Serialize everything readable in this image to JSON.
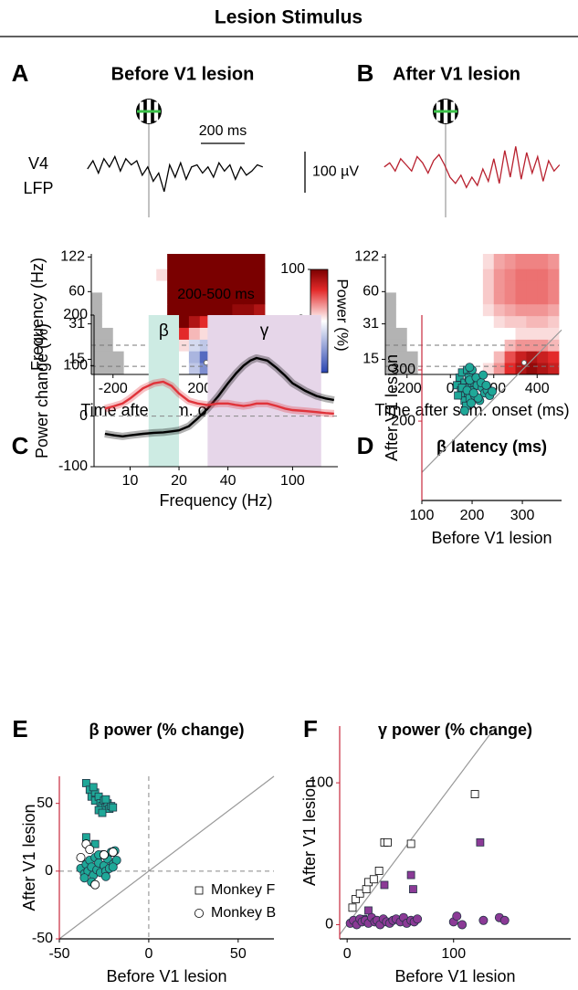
{
  "title": "Lesion Stimulus",
  "chart_data": [
    {
      "type": "trace",
      "panel": "A",
      "title": "Before V1 lesion",
      "title_color": "#000000",
      "color": "#000000",
      "ylabel_lines": [
        "V4",
        "LFP"
      ],
      "scalebar_x": {
        "value": 200,
        "label": "200 ms"
      },
      "x": [
        -280,
        -255,
        -230,
        -205,
        -180,
        -155,
        -130,
        -105,
        -80,
        -55,
        -30,
        -5,
        20,
        45,
        70,
        95,
        120,
        145,
        170,
        195,
        220,
        245,
        270,
        295,
        320,
        345,
        370,
        395,
        420,
        445,
        470,
        495,
        520
      ],
      "values": [
        0,
        20,
        -10,
        25,
        5,
        30,
        -5,
        25,
        10,
        20,
        -15,
        5,
        -30,
        -10,
        -55,
        10,
        -20,
        15,
        -25,
        5,
        10,
        -10,
        5,
        -20,
        15,
        -5,
        10,
        -25,
        5,
        -15,
        -5,
        10,
        5
      ]
    },
    {
      "type": "trace",
      "panel": "B",
      "title": "After V1 lesion",
      "title_color": "#c8283c",
      "color": "#b8202e",
      "scalebar_y": {
        "value": 100,
        "label": "100 µV"
      },
      "x": [
        -280,
        -255,
        -230,
        -205,
        -180,
        -155,
        -130,
        -105,
        -80,
        -55,
        -30,
        -5,
        20,
        45,
        70,
        95,
        120,
        145,
        170,
        195,
        220,
        245,
        270,
        295,
        320,
        345,
        370,
        395,
        420,
        445,
        470,
        495,
        520
      ],
      "values": [
        5,
        15,
        -5,
        25,
        10,
        -5,
        30,
        15,
        -10,
        20,
        35,
        10,
        -20,
        -35,
        -15,
        -45,
        -20,
        -40,
        0,
        -30,
        25,
        -35,
        45,
        -20,
        55,
        -25,
        40,
        -10,
        30,
        -30,
        20,
        -5,
        10
      ]
    },
    {
      "type": "heatmap",
      "xlabel": "Time after stim. onset (ms)",
      "ylabel": "Frequency (Hz)",
      "xlim": [
        -300,
        500
      ],
      "xticks": [
        -200,
        0,
        200,
        400
      ],
      "ylim": [
        11,
        130
      ],
      "yticks": [
        15,
        31,
        60,
        122
      ],
      "log_y": true,
      "xbins": [
        -300,
        -250,
        -200,
        -150,
        -100,
        -50,
        0,
        50,
        100,
        150,
        200,
        250,
        300,
        350,
        400,
        450,
        500
      ],
      "ybins": [
        11,
        14,
        17.8,
        22.6,
        28.8,
        36.6,
        46.6,
        59.3,
        75.4,
        95.9,
        130
      ],
      "z": [
        [
          null,
          null,
          null,
          0,
          0,
          0,
          0,
          0,
          0,
          -30,
          -60,
          -70,
          -70,
          -60,
          -60,
          -50
        ],
        [
          null,
          null,
          null,
          0,
          0,
          0,
          0,
          0,
          0,
          -40,
          -80,
          -90,
          -80,
          -70,
          -70,
          -60
        ],
        [
          null,
          null,
          0,
          0,
          0,
          0,
          0,
          0,
          10,
          -20,
          -30,
          -30,
          -20,
          -20,
          -10,
          -10
        ],
        [
          null,
          null,
          0,
          0,
          0,
          0,
          0,
          100,
          60,
          20,
          10,
          10,
          20,
          20,
          20,
          20
        ],
        [
          null,
          0,
          0,
          0,
          0,
          0,
          0,
          120,
          110,
          80,
          60,
          50,
          60,
          60,
          50,
          40
        ],
        [
          null,
          0,
          0,
          0,
          0,
          0,
          0,
          130,
          130,
          120,
          110,
          100,
          100,
          90,
          90,
          80
        ],
        [
          null,
          0,
          0,
          0,
          0,
          0,
          0,
          140,
          130,
          130,
          130,
          130,
          130,
          120,
          120,
          110
        ],
        [
          0,
          0,
          0,
          0,
          0,
          0,
          0,
          140,
          130,
          130,
          130,
          130,
          130,
          130,
          120,
          120
        ],
        [
          0,
          0,
          0,
          0,
          0,
          0,
          10,
          140,
          130,
          130,
          130,
          130,
          130,
          130,
          130,
          120
        ],
        [
          0,
          0,
          0,
          0,
          0,
          0,
          0,
          140,
          130,
          130,
          130,
          130,
          130,
          130,
          130,
          130
        ]
      ],
      "hlines": [
        13,
        20
      ],
      "marker": {
        "x": 230,
        "y": 14
      },
      "colorbar": {
        "clim": [
          -100,
          100
        ],
        "ticks": [
          -100,
          0,
          100
        ],
        "label": "Power (%)"
      }
    },
    {
      "type": "heatmap",
      "xlabel": "Time after stim. onset (ms)",
      "xlim": [
        -300,
        500
      ],
      "xticks": [
        -200,
        0,
        200,
        400
      ],
      "ylim": [
        11,
        130
      ],
      "yticks": [
        15,
        31,
        60,
        122
      ],
      "log_y": true,
      "xbins": [
        -300,
        -250,
        -200,
        -150,
        -100,
        -50,
        0,
        50,
        100,
        150,
        200,
        250,
        300,
        350,
        400,
        450,
        500
      ],
      "ybins": [
        11,
        14,
        17.8,
        22.6,
        28.8,
        36.6,
        46.6,
        59.3,
        75.4,
        95.9,
        130
      ],
      "z": [
        [
          null,
          null,
          null,
          0,
          0,
          0,
          0,
          0,
          0,
          10,
          30,
          60,
          80,
          90,
          80,
          70
        ],
        [
          null,
          null,
          null,
          0,
          0,
          0,
          0,
          0,
          0,
          0,
          20,
          50,
          70,
          80,
          70,
          60
        ],
        [
          null,
          null,
          0,
          0,
          0,
          0,
          0,
          0,
          0,
          0,
          0,
          20,
          30,
          30,
          30,
          20
        ],
        [
          null,
          null,
          0,
          0,
          0,
          0,
          0,
          0,
          0,
          0,
          0,
          0,
          10,
          10,
          10,
          10
        ],
        [
          null,
          0,
          0,
          0,
          0,
          0,
          0,
          0,
          0,
          0,
          10,
          15,
          15,
          20,
          20,
          15
        ],
        [
          null,
          0,
          0,
          0,
          0,
          0,
          0,
          0,
          0,
          10,
          20,
          25,
          30,
          30,
          30,
          25
        ],
        [
          null,
          0,
          0,
          0,
          0,
          0,
          0,
          0,
          0,
          15,
          30,
          35,
          40,
          40,
          40,
          35
        ],
        [
          0,
          0,
          0,
          0,
          0,
          0,
          0,
          0,
          0,
          15,
          30,
          35,
          40,
          40,
          40,
          35
        ],
        [
          0,
          0,
          0,
          0,
          0,
          0,
          0,
          0,
          0,
          15,
          30,
          35,
          40,
          40,
          40,
          35
        ],
        [
          0,
          0,
          0,
          0,
          0,
          0,
          0,
          0,
          0,
          10,
          25,
          30,
          35,
          35,
          35,
          30
        ]
      ],
      "hlines": [
        13,
        20
      ],
      "marker": {
        "x": 340,
        "y": 14
      }
    },
    {
      "type": "line",
      "panel": "C",
      "title": "200-500 ms",
      "title_color": "#000000",
      "xlabel": "Frequency (Hz)",
      "ylabel": "Power change (%)",
      "xlim": [
        6,
        190
      ],
      "xticks": [
        10,
        20,
        40,
        100
      ],
      "log_x": true,
      "ylim": [
        -100,
        200
      ],
      "yticks": [
        -100,
        0,
        100,
        200
      ],
      "bands": [
        {
          "label": "β",
          "range": [
            13,
            20
          ],
          "color": "#cdebe3",
          "label_color": "#1fa898"
        },
        {
          "label": "γ",
          "range": [
            30,
            150
          ],
          "color": "#e6d6e9",
          "label_color": "#8b3a96"
        }
      ],
      "hlines": [
        0
      ],
      "x": [
        7,
        8,
        9,
        10,
        12,
        14,
        16,
        18,
        20,
        23,
        26,
        30,
        35,
        40,
        45,
        50,
        55,
        60,
        70,
        80,
        90,
        100,
        120,
        140,
        160,
        180
      ],
      "series": [
        {
          "color": "#000000",
          "values": [
            -35,
            -38,
            -40,
            -38,
            -35,
            -33,
            -32,
            -30,
            -28,
            -20,
            -5,
            15,
            40,
            65,
            85,
            100,
            110,
            115,
            110,
            95,
            80,
            65,
            50,
            40,
            35,
            32
          ]
        },
        {
          "color": "#e0333a",
          "values": [
            15,
            20,
            25,
            35,
            55,
            65,
            68,
            60,
            45,
            30,
            25,
            22,
            25,
            25,
            22,
            20,
            22,
            25,
            25,
            20,
            15,
            12,
            10,
            8,
            6,
            5
          ]
        }
      ]
    },
    {
      "type": "scatter",
      "panel": "D",
      "title": "β latency (ms)",
      "title_color": "#1fa898",
      "xlabel": "Before V1 lesion",
      "ylabel": "After V1 lesion",
      "yaxis_color": "#c8283c",
      "xlim": [
        100,
        378
      ],
      "xticks": [
        100,
        200,
        300
      ],
      "ylim": [
        45,
        407
      ],
      "yticks": [
        200,
        300
      ],
      "diagonal": true,
      "series": [
        {
          "marker": "square",
          "color": "#1fa898",
          "x": [
            170,
            175,
            178,
            180,
            182,
            185,
            185,
            188,
            190,
            192,
            195,
            195,
            198,
            200,
            202,
            205,
            180,
            172,
            188,
            193
          ],
          "values": [
            270,
            285,
            260,
            295,
            250,
            275,
            240,
            265,
            300,
            255,
            280,
            245,
            290,
            270,
            260,
            275,
            265,
            250,
            230,
            285
          ]
        },
        {
          "marker": "circle",
          "color": "#1fa898",
          "x": [
            185,
            190,
            195,
            200,
            205,
            210,
            215,
            220,
            225,
            230,
            235,
            240,
            198,
            208,
            212,
            218,
            222,
            228,
            195,
            203
          ],
          "values": [
            220,
            260,
            280,
            300,
            250,
            270,
            240,
            265,
            255,
            260,
            250,
            258,
            235,
            285,
            245,
            275,
            290,
            270,
            305,
            255
          ]
        }
      ]
    },
    {
      "type": "scatter",
      "panel": "E",
      "title": "β power (% change)",
      "title_color": "#1fa898",
      "xlabel": "Before V1 lesion",
      "ylabel": "After V1 lesion",
      "yaxis_color": "#c8283c",
      "xlim": [
        -50,
        70
      ],
      "xticks": [
        -50,
        0,
        50
      ],
      "ylim": [
        -50,
        70
      ],
      "yticks": [
        -50,
        0,
        50
      ],
      "diagonal": true,
      "zero_lines": true,
      "legend": "lower right",
      "series": [
        {
          "name": "Monkey F",
          "marker": "square",
          "color": "#1fa898",
          "x": [
            -35,
            -33,
            -32,
            -30,
            -30,
            -28,
            -27,
            -26,
            -25,
            -24,
            -23,
            -22,
            -21,
            -20,
            -28,
            -26,
            -31,
            -24,
            -35,
            -33,
            -30
          ],
          "values": [
            65,
            60,
            55,
            58,
            52,
            55,
            50,
            48,
            52,
            47,
            50,
            46,
            48,
            47,
            45,
            43,
            62,
            53,
            25,
            18,
            20
          ]
        },
        {
          "name": "Monkey B",
          "marker": "circle",
          "color": "#1fa898",
          "x": [
            -38,
            -36,
            -35,
            -34,
            -33,
            -32,
            -31,
            -30,
            -29,
            -28,
            -27,
            -26,
            -25,
            -24,
            -23,
            -22,
            -21,
            -20,
            -19,
            -18,
            -36,
            -32,
            -28,
            -24,
            -20
          ],
          "values": [
            2,
            -2,
            5,
            0,
            8,
            3,
            -3,
            10,
            1,
            6,
            -1,
            12,
            4,
            0,
            9,
            2,
            14,
            5,
            15,
            8,
            -5,
            -8,
            12,
            -4,
            3
          ]
        },
        {
          "marker": "circle",
          "color": "#ffffff",
          "x": [
            -35,
            -33,
            -25,
            -38,
            -30,
            -20
          ],
          "values": [
            20,
            16,
            12,
            10,
            -10,
            14
          ]
        }
      ]
    },
    {
      "type": "scatter",
      "panel": "F",
      "title": "γ power (% change)",
      "title_color": "#8b3a96",
      "xlabel": "Before V1 lesion",
      "ylabel": "After V1 lesion",
      "yaxis_color": "#c8283c",
      "xlim": [
        -7,
        210
      ],
      "xticks": [
        0,
        100
      ],
      "ylim": [
        -10,
        140
      ],
      "yticks": [
        0,
        100
      ],
      "diagonal": true,
      "series": [
        {
          "marker": "square",
          "color": "#ffffff",
          "x": [
            5,
            8,
            12,
            18,
            20,
            25,
            30,
            35,
            38,
            60,
            120
          ],
          "values": [
            12,
            18,
            22,
            25,
            30,
            32,
            38,
            58,
            58,
            57,
            92
          ]
        },
        {
          "marker": "square",
          "color": "#8b3a96",
          "x": [
            15,
            20,
            35,
            60,
            62,
            125
          ],
          "values": [
            4,
            10,
            28,
            35,
            25,
            58
          ]
        },
        {
          "marker": "circle",
          "color": "#8b3a96",
          "x": [
            3,
            6,
            9,
            12,
            14,
            17,
            20,
            23,
            26,
            28,
            31,
            34,
            37,
            40,
            43,
            46,
            50,
            53,
            56,
            60,
            63,
            66,
            100,
            103,
            108,
            128,
            143,
            148
          ],
          "values": [
            1,
            3,
            0,
            4,
            2,
            3,
            1,
            5,
            2,
            3,
            0,
            4,
            2,
            1,
            3,
            4,
            2,
            5,
            1,
            3,
            2,
            4,
            2,
            6,
            0,
            3,
            5,
            3
          ]
        }
      ]
    }
  ]
}
